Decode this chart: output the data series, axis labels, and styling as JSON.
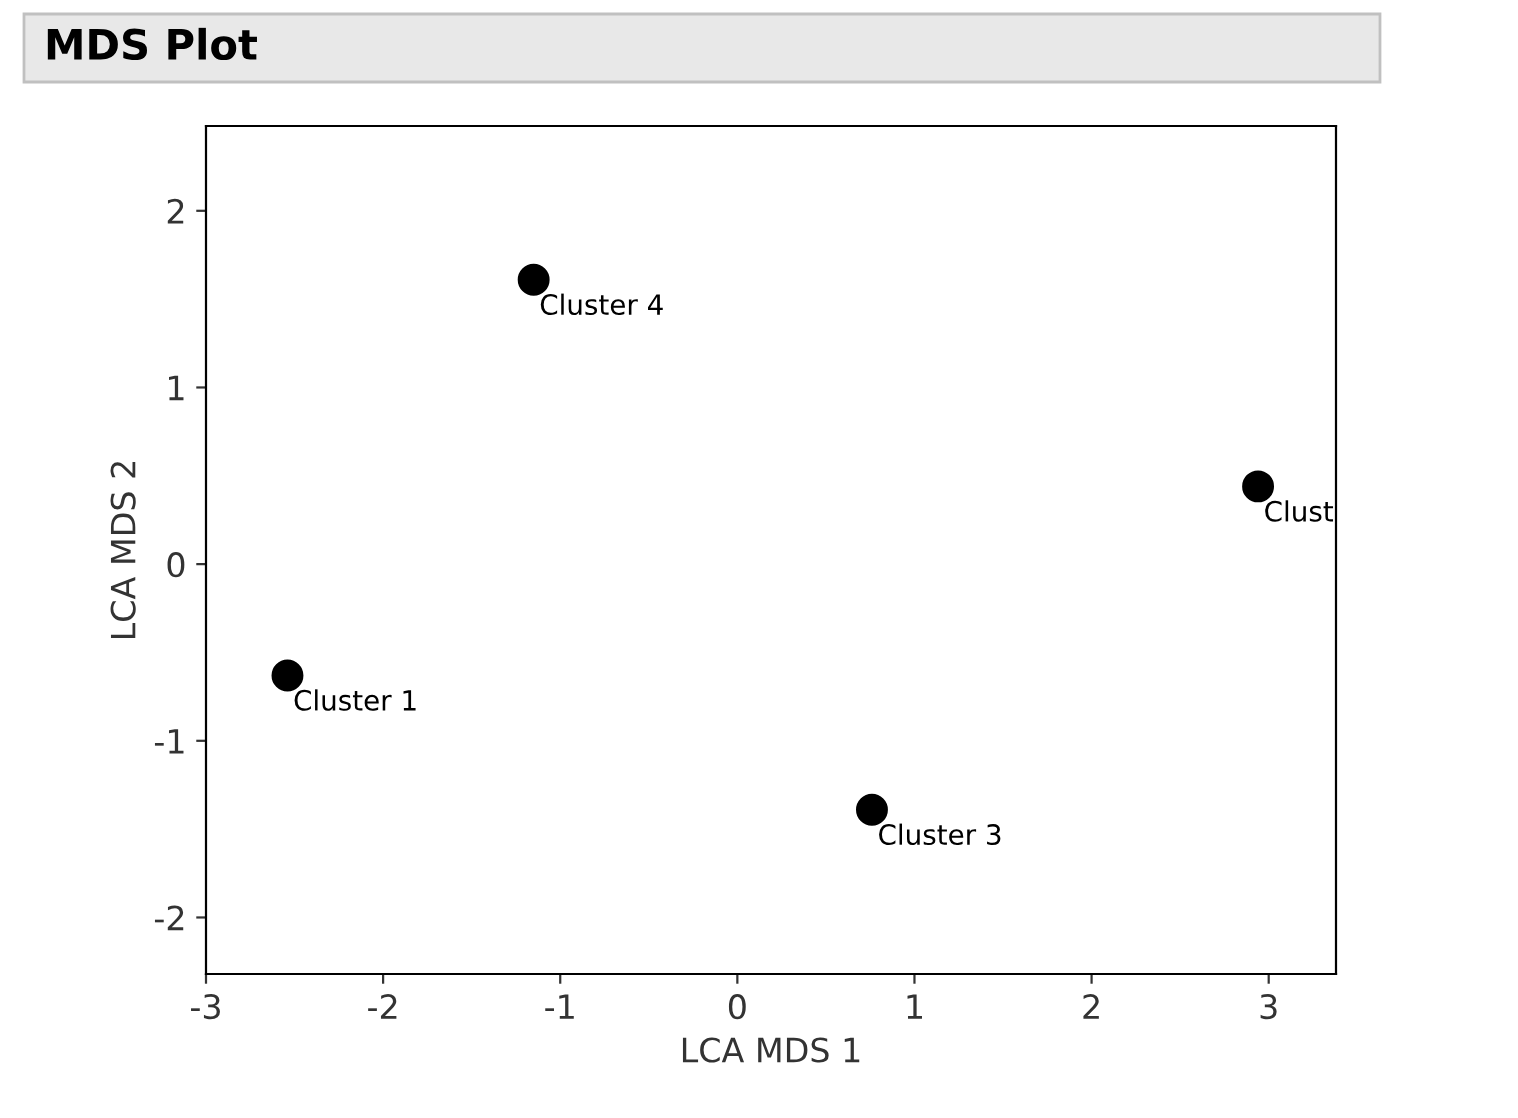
{
  "chart_data": {
    "type": "scatter",
    "title": "MDS Plot",
    "xlabel": "LCA MDS 1",
    "ylabel": "LCA MDS 2",
    "x": [
      -2.54,
      2.94,
      0.76,
      -1.15
    ],
    "series": [
      {
        "color": "#000000",
        "values": [
          -0.63,
          0.44,
          -1.39,
          1.61
        ]
      }
    ],
    "annotations": [
      {
        "text": "Cluster 1",
        "x": -2.54,
        "y": -0.63
      },
      {
        "text": "Clust",
        "x": 2.94,
        "y": 0.44
      },
      {
        "text": "Cluster 3",
        "x": 0.76,
        "y": -1.39
      },
      {
        "text": "Cluster 4",
        "x": -1.15,
        "y": 1.61
      }
    ],
    "xlim": [
      -3,
      3.38
    ],
    "ylim": [
      -2.32,
      2.48
    ],
    "xticks": [
      -3,
      -2,
      -1,
      0,
      1,
      2,
      3
    ],
    "yticks": [
      -2,
      -1,
      0,
      1,
      2
    ],
    "marker": "circle",
    "grid": false,
    "legend": false
  }
}
